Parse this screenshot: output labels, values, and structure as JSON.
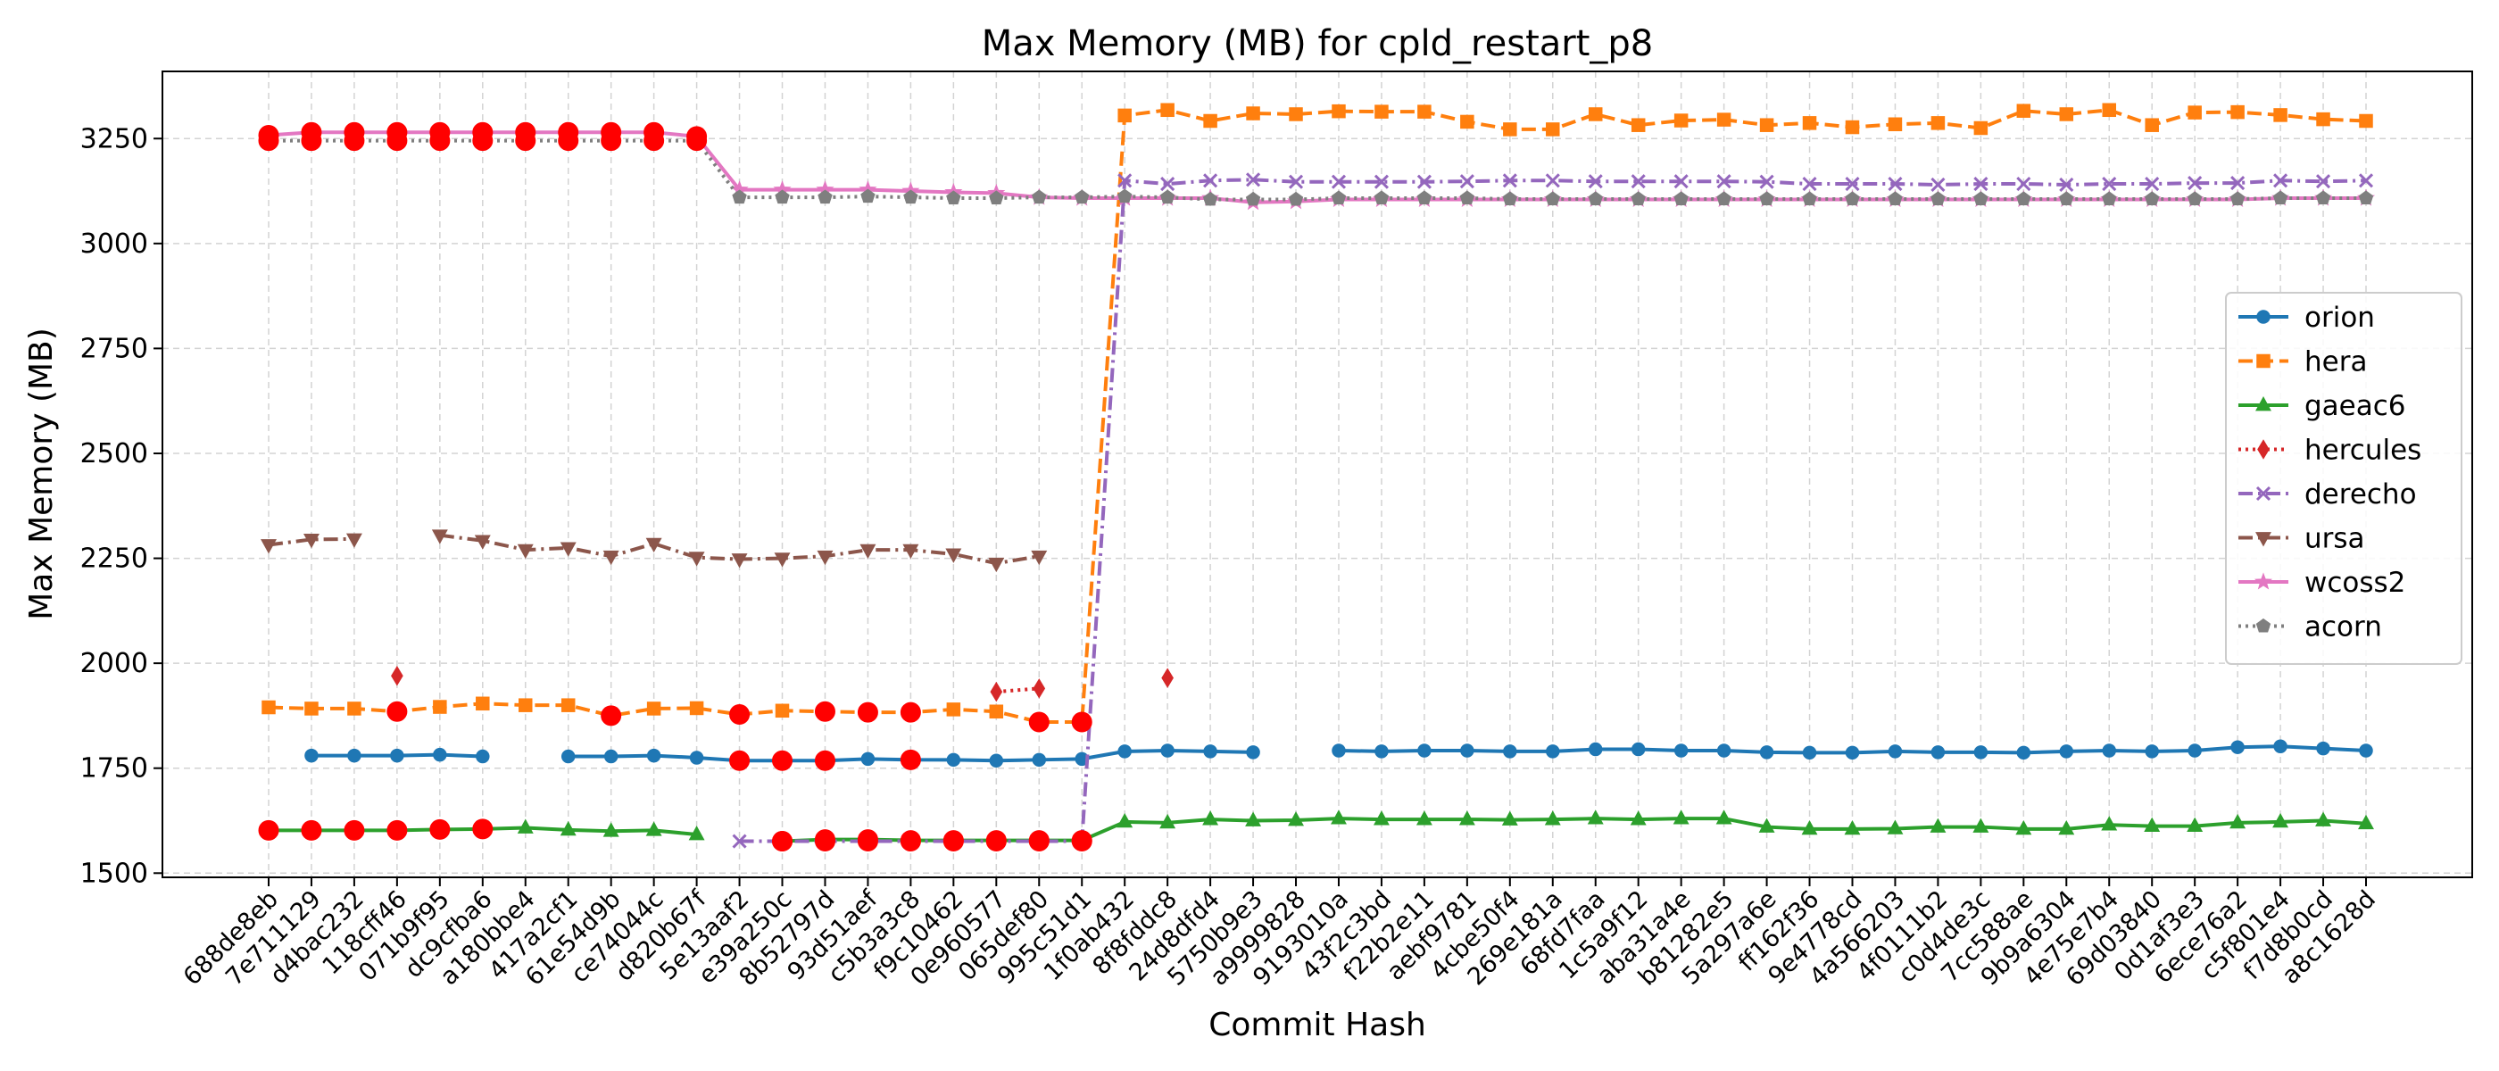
{
  "chart_data": {
    "type": "line",
    "title": "Max Memory (MB) for cpld_restart_p8",
    "xlabel": "Commit Hash",
    "ylabel": "Max Memory (MB)",
    "ylim": [
      1490,
      3410
    ],
    "yticks": [
      1500,
      1750,
      2000,
      2250,
      2500,
      2750,
      3000,
      3250
    ],
    "grid": true,
    "legend_position": "center-right",
    "categories": [
      "688de8eb",
      "7e711129",
      "d4bac232",
      "118cff46",
      "071b9f95",
      "dc9cfba6",
      "a180bbe4",
      "417a2cf1",
      "61e54d9b",
      "ce74044c",
      "d820b67f",
      "5e13aaf2",
      "e39a250c",
      "8b52797d",
      "93d51aef",
      "c5b3a3c8",
      "f9c10462",
      "0e960577",
      "065def80",
      "995c51d1",
      "1f0ab432",
      "8f8fddc8",
      "24d8dfd4",
      "5750b9e3",
      "a9999828",
      "9193010a",
      "43f2c3bd",
      "f22b2e11",
      "aebf9781",
      "4cbe50f4",
      "269e181a",
      "68fd7faa",
      "1c5a9f12",
      "aba31a4e",
      "b81282e5",
      "5a297a6e",
      "ff162f36",
      "9e4778cd",
      "4a566203",
      "4f0111b2",
      "c0d4de3c",
      "7cc588ae",
      "9b9a6304",
      "4e75e7b4",
      "69d03840",
      "0d1af3e3",
      "6ece76a2",
      "c5f801e4",
      "f7d8b0cd",
      "a8c1628d"
    ],
    "series": [
      {
        "name": "orion",
        "color": "#1f77b4",
        "marker": "circle",
        "dash": "solid",
        "values": [
          null,
          1780,
          1780,
          1780,
          1782,
          1778,
          null,
          1778,
          1778,
          1780,
          1775,
          1768,
          1768,
          1768,
          1772,
          1770,
          1770,
          1768,
          1770,
          1772,
          1790,
          1792,
          1790,
          1788,
          null,
          1792,
          1790,
          1792,
          1792,
          1790,
          1790,
          1795,
          1795,
          1792,
          1792,
          1788,
          1787,
          1787,
          1790,
          1788,
          1788,
          1787,
          1790,
          1792,
          1790,
          1792,
          1800,
          1802,
          1797,
          1792
        ]
      },
      {
        "name": "hera",
        "color": "#ff7f0e",
        "marker": "square",
        "dash": "dashed",
        "values": [
          1895,
          1892,
          1892,
          1885,
          1896,
          1904,
          1900,
          1900,
          1875,
          1892,
          1893,
          1878,
          1887,
          1885,
          1883,
          1883,
          1890,
          1885,
          1860,
          1860,
          3305,
          3318,
          3292,
          3310,
          3308,
          3315,
          3314,
          3314,
          3290,
          3272,
          3272,
          3308,
          3282,
          3293,
          3295,
          3282,
          3287,
          3277,
          3284,
          3287,
          3275,
          3316,
          3308,
          3318,
          3282,
          3312,
          3313,
          3306,
          3296,
          3292
        ]
      },
      {
        "name": "gaeac6",
        "color": "#2ca02c",
        "marker": "triangle-up",
        "dash": "solid",
        "values": [
          1602,
          1602,
          1602,
          1602,
          1604,
          1605,
          1608,
          1603,
          1600,
          1602,
          1592,
          null,
          1576,
          1580,
          1580,
          1578,
          1578,
          1578,
          1578,
          1578,
          1622,
          1620,
          1628,
          1625,
          1626,
          1630,
          1628,
          1628,
          1628,
          1627,
          1628,
          1630,
          1628,
          1630,
          1630,
          1610,
          1605,
          1605,
          1606,
          1610,
          1610,
          1605,
          1605,
          1615,
          1612,
          1612,
          1620,
          1622,
          1625,
          1618
        ]
      },
      {
        "name": "hercules",
        "color": "#d62728",
        "marker": "diamond",
        "dash": "dotted",
        "values": [
          null,
          null,
          null,
          1970,
          null,
          null,
          null,
          null,
          null,
          null,
          null,
          null,
          null,
          null,
          null,
          null,
          null,
          1932,
          1940,
          null,
          null,
          1965,
          null,
          null,
          null,
          null,
          null,
          null,
          null,
          null,
          null,
          null,
          null,
          null,
          null,
          null,
          null,
          null,
          null,
          null,
          null,
          null,
          null,
          null,
          null,
          null,
          null,
          null,
          null,
          null
        ]
      },
      {
        "name": "derecho",
        "color": "#9467bd",
        "marker": "x",
        "dash": "dashdot",
        "values": [
          null,
          null,
          null,
          null,
          null,
          null,
          null,
          null,
          null,
          null,
          null,
          1576,
          1576,
          1576,
          1576,
          1576,
          1576,
          1576,
          1576,
          1576,
          3150,
          3142,
          3150,
          3152,
          3147,
          3147,
          3147,
          3147,
          3148,
          3150,
          3150,
          3148,
          3148,
          3148,
          3148,
          3147,
          3142,
          3142,
          3142,
          3140,
          3142,
          3142,
          3140,
          3142,
          3142,
          3144,
          3144,
          3150,
          3148,
          3150
        ]
      },
      {
        "name": "ursa",
        "color": "#8c564b",
        "marker": "triangle-down",
        "dash": "dashdot",
        "values": [
          2282,
          2295,
          2296,
          null,
          2305,
          2292,
          2270,
          2275,
          2255,
          2285,
          2252,
          2248,
          2250,
          2255,
          2270,
          2270,
          2260,
          2238,
          2255,
          null,
          null,
          null,
          null,
          null,
          null,
          null,
          null,
          null,
          null,
          null,
          null,
          null,
          null,
          null,
          null,
          null,
          null,
          null,
          null,
          null,
          null,
          null,
          null,
          null,
          null,
          null,
          null,
          null,
          null,
          null
        ]
      },
      {
        "name": "wcoss2",
        "color": "#e377c2",
        "marker": "star",
        "dash": "solid",
        "values": [
          3258,
          3265,
          3265,
          3265,
          3265,
          3265,
          3265,
          3265,
          3265,
          3265,
          3255,
          3128,
          3128,
          3128,
          3128,
          3125,
          3122,
          3120,
          3110,
          3108,
          3108,
          3108,
          3108,
          3098,
          3100,
          3105,
          3105,
          3105,
          3105,
          3105,
          3105,
          3105,
          3105,
          3105,
          3105,
          3105,
          3105,
          3105,
          3105,
          3105,
          3105,
          3105,
          3105,
          3105,
          3105,
          3105,
          3105,
          3108,
          3108,
          3108
        ]
      },
      {
        "name": "acorn",
        "color": "#7f7f7f",
        "marker": "pentagon",
        "dash": "dotted",
        "values": [
          3245,
          3245,
          3245,
          3245,
          3245,
          3245,
          3245,
          3245,
          3245,
          3245,
          3245,
          3110,
          3110,
          3110,
          3112,
          3110,
          3108,
          3108,
          3110,
          3110,
          3112,
          3110,
          3105,
          3105,
          3105,
          3108,
          3108,
          3108,
          3108,
          3106,
          3106,
          3106,
          3106,
          3106,
          3106,
          3106,
          3106,
          3106,
          3106,
          3106,
          3106,
          3106,
          3106,
          3106,
          3106,
          3106,
          3106,
          3108,
          3108,
          3108
        ]
      }
    ],
    "highlight_points": {
      "color": "#ff0000",
      "series_and_indices": {
        "wcoss2": [
          0,
          1,
          2,
          3,
          4,
          5,
          6,
          7,
          8,
          9,
          10
        ],
        "acorn": [
          0,
          1,
          2,
          3,
          4,
          5,
          6,
          7,
          8,
          9,
          10
        ],
        "hera": [
          3,
          8,
          11,
          13,
          14,
          15,
          18,
          19
        ],
        "orion": [
          11,
          12,
          13,
          15
        ],
        "gaeac6": [
          0,
          1,
          2,
          3,
          4,
          5,
          11,
          12,
          13,
          14,
          15,
          16,
          17,
          18,
          19
        ],
        "derecho": [
          12,
          13,
          14,
          15,
          16,
          17,
          18,
          19
        ]
      }
    }
  }
}
